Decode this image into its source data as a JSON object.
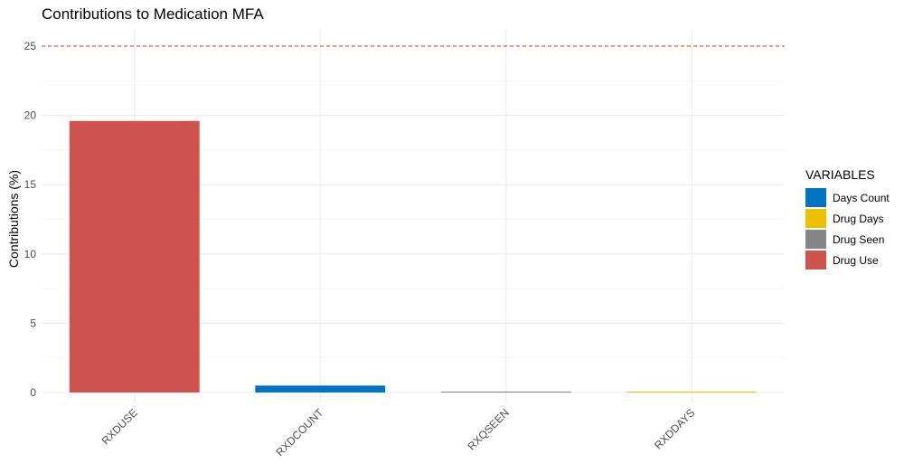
{
  "chart_data": {
    "type": "bar",
    "title": "Contributions to Medication MFA",
    "xlabel": "",
    "ylabel": "Contributions (%)",
    "ylim": [
      0,
      26.5
    ],
    "yticks": [
      0,
      5,
      10,
      15,
      20,
      25
    ],
    "categories": [
      "RXDUSE",
      "RXDCOUNT",
      "RXQSEEN",
      "RXDDAYS"
    ],
    "values": [
      19.6,
      0.5,
      0.05,
      0.04
    ],
    "bar_groups": [
      "Drug Use",
      "Days Count",
      "Drug Seen",
      "Drug Days"
    ],
    "reference_line": {
      "y": 25,
      "style": "dashed",
      "color": "#c0392b"
    },
    "grid": true,
    "legend": {
      "title": "VARIABLES",
      "position": "right",
      "items": [
        {
          "label": "Days Count",
          "color": "#0073c2"
        },
        {
          "label": "Drug Days",
          "color": "#efc000"
        },
        {
          "label": "Drug Seen",
          "color": "#868686"
        },
        {
          "label": "Drug Use",
          "color": "#cd534c"
        }
      ]
    }
  }
}
